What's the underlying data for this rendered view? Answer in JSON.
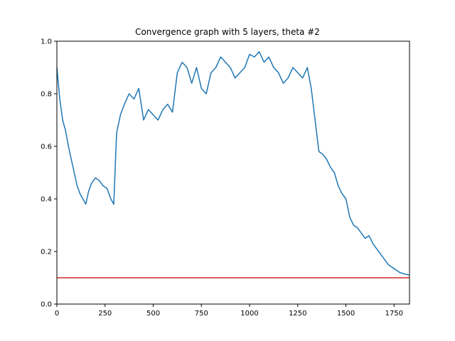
{
  "chart_data": {
    "type": "line",
    "title": "Convergence graph with 5 layers, theta #2",
    "xlabel": "",
    "ylabel": "",
    "xlim": [
      0,
      1830
    ],
    "ylim": [
      0.0,
      1.0
    ],
    "x_ticks": [
      0,
      250,
      500,
      750,
      1000,
      1250,
      1500,
      1750
    ],
    "x_tick_labels": [
      "0",
      "250",
      "500",
      "750",
      "1000",
      "1250",
      "1500",
      "1750"
    ],
    "y_ticks": [
      0.0,
      0.2,
      0.4,
      0.6,
      0.8,
      1.0
    ],
    "y_tick_labels": [
      "0.0",
      "0.2",
      "0.4",
      "0.6",
      "0.8",
      "1.0"
    ],
    "grid": false,
    "legend": "none",
    "series": [
      {
        "color": "#1f77b4",
        "x": [
          0,
          15,
          30,
          45,
          60,
          75,
          90,
          105,
          120,
          135,
          150,
          165,
          180,
          200,
          220,
          240,
          260,
          280,
          295,
          310,
          330,
          350,
          375,
          400,
          425,
          450,
          475,
          500,
          525,
          550,
          575,
          600,
          625,
          650,
          675,
          700,
          725,
          750,
          775,
          800,
          825,
          850,
          875,
          900,
          925,
          950,
          975,
          1000,
          1025,
          1050,
          1075,
          1100,
          1125,
          1150,
          1175,
          1200,
          1225,
          1250,
          1275,
          1300,
          1320,
          1340,
          1360,
          1380,
          1400,
          1420,
          1440,
          1460,
          1480,
          1500,
          1520,
          1540,
          1560,
          1580,
          1600,
          1620,
          1640,
          1660,
          1680,
          1700,
          1720,
          1740,
          1760,
          1780,
          1800,
          1830
        ],
        "y": [
          0.9,
          0.78,
          0.7,
          0.66,
          0.6,
          0.55,
          0.5,
          0.45,
          0.42,
          0.4,
          0.38,
          0.43,
          0.46,
          0.48,
          0.47,
          0.45,
          0.44,
          0.4,
          0.38,
          0.65,
          0.72,
          0.76,
          0.8,
          0.78,
          0.82,
          0.7,
          0.74,
          0.72,
          0.7,
          0.74,
          0.76,
          0.73,
          0.88,
          0.92,
          0.9,
          0.84,
          0.9,
          0.82,
          0.8,
          0.88,
          0.9,
          0.94,
          0.92,
          0.9,
          0.86,
          0.88,
          0.9,
          0.95,
          0.94,
          0.96,
          0.92,
          0.94,
          0.9,
          0.88,
          0.84,
          0.86,
          0.9,
          0.88,
          0.86,
          0.9,
          0.82,
          0.7,
          0.58,
          0.57,
          0.55,
          0.52,
          0.5,
          0.45,
          0.42,
          0.4,
          0.33,
          0.3,
          0.29,
          0.27,
          0.25,
          0.26,
          0.23,
          0.21,
          0.19,
          0.17,
          0.15,
          0.14,
          0.13,
          0.12,
          0.115,
          0.11
        ]
      },
      {
        "color": "#d62728",
        "x": [
          0,
          1830
        ],
        "y": [
          0.1,
          0.1
        ]
      }
    ]
  }
}
